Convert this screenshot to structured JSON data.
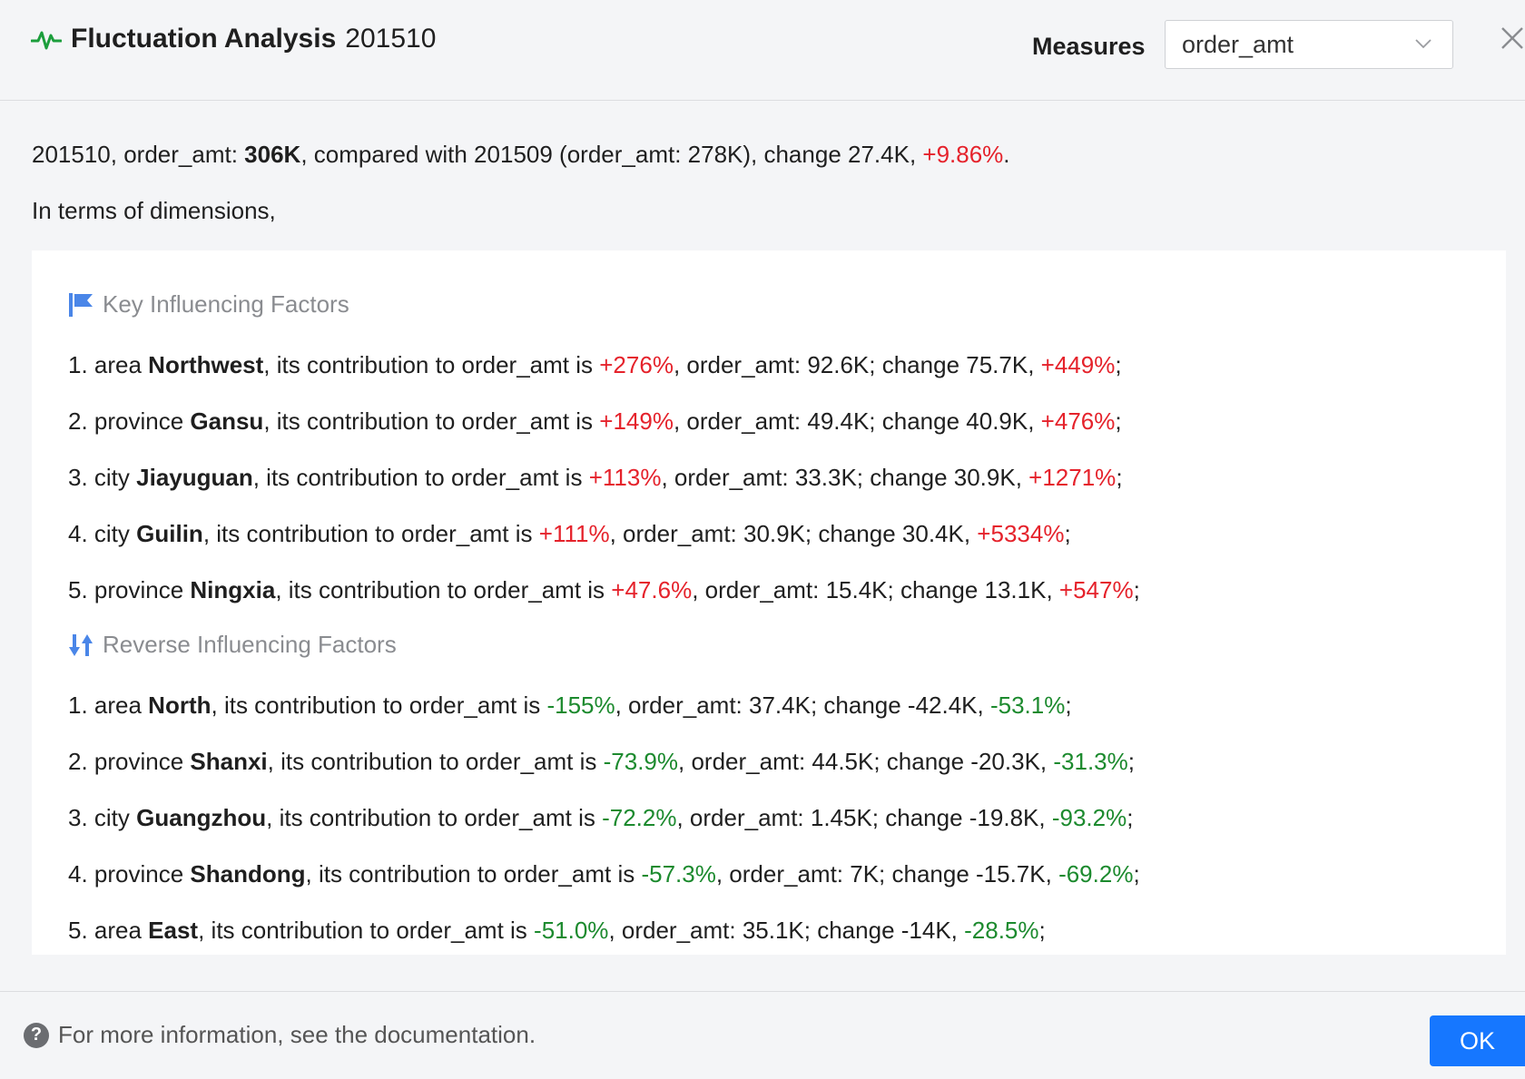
{
  "header": {
    "title": "Fluctuation Analysis",
    "period": "201510",
    "icon": "pulse-icon",
    "measures_label": "Measures",
    "measure_value": "order_amt"
  },
  "summary": {
    "period": "201510, order_amt: ",
    "value": "306K",
    "compare": ", compared with 201509 (order_amt: 278K), change 27.4K, ",
    "change_pct": "+9.86%",
    "end": "."
  },
  "dimensions_intro": "In terms of dimensions,",
  "key_factors": {
    "heading": "Key Influencing Factors",
    "items": [
      {
        "prefix": "1. area ",
        "name": "Northwest",
        "mid": ", its contribution to order_amt is ",
        "contribution": "+276%",
        "detail": ", order_amt: 92.6K; change 75.7K, ",
        "pct": "+449%"
      },
      {
        "prefix": "2. province ",
        "name": "Gansu",
        "mid": ", its contribution to order_amt is ",
        "contribution": "+149%",
        "detail": ", order_amt: 49.4K; change 40.9K, ",
        "pct": "+476%"
      },
      {
        "prefix": "3. city ",
        "name": "Jiayuguan",
        "mid": ", its contribution to order_amt is ",
        "contribution": "+113%",
        "detail": ", order_amt: 33.3K; change 30.9K, ",
        "pct": "+1271%"
      },
      {
        "prefix": "4. city ",
        "name": "Guilin",
        "mid": ", its contribution to order_amt is ",
        "contribution": "+111%",
        "detail": ", order_amt: 30.9K; change 30.4K, ",
        "pct": "+5334%"
      },
      {
        "prefix": "5. province ",
        "name": "Ningxia",
        "mid": ", its contribution to order_amt is ",
        "contribution": "+47.6%",
        "detail": ", order_amt: 15.4K; change 13.1K, ",
        "pct": "+547%"
      }
    ]
  },
  "reverse_factors": {
    "heading": "Reverse Influencing Factors",
    "items": [
      {
        "prefix": "1. area ",
        "name": "North",
        "mid": ", its contribution to order_amt is ",
        "contribution": "-155%",
        "detail": ", order_amt: 37.4K; change -42.4K, ",
        "pct": "-53.1%"
      },
      {
        "prefix": "2. province ",
        "name": "Shanxi",
        "mid": ", its contribution to order_amt is ",
        "contribution": "-73.9%",
        "detail": ", order_amt: 44.5K; change -20.3K, ",
        "pct": "-31.3%"
      },
      {
        "prefix": "3. city ",
        "name": "Guangzhou",
        "mid": ", its contribution to order_amt is ",
        "contribution": "-72.2%",
        "detail": ", order_amt: 1.45K; change -19.8K, ",
        "pct": "-93.2%"
      },
      {
        "prefix": "4. province ",
        "name": "Shandong",
        "mid": ", its contribution to order_amt is ",
        "contribution": "-57.3%",
        "detail": ", order_amt: 7K; change -15.7K, ",
        "pct": "-69.2%"
      },
      {
        "prefix": "5. area ",
        "name": "East",
        "mid": ", its contribution to order_amt is ",
        "contribution": "-51.0%",
        "detail": ", order_amt: 35.1K; change -14K, ",
        "pct": "-28.5%"
      }
    ]
  },
  "footer": {
    "help_text": "For more information, see the documentation.",
    "ok_label": "OK"
  },
  "colors": {
    "positive": "#e5222b",
    "negative": "#1c8a2e",
    "accent": "#1677ff"
  }
}
